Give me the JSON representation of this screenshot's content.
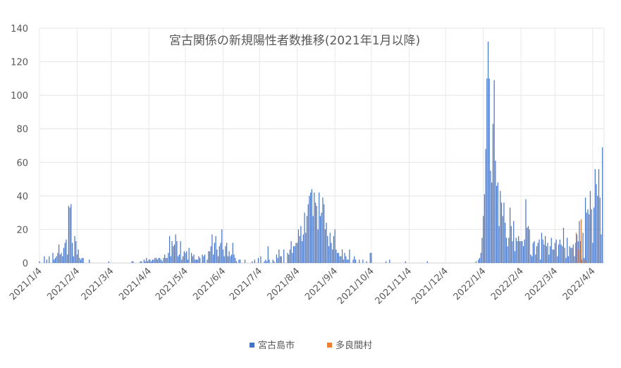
{
  "chart_data": {
    "type": "bar",
    "title": "宮古関係の新規陽性者数推移(2021年1月以降)",
    "xlabel": "",
    "ylabel": "",
    "ylim": [
      0,
      140
    ],
    "yticks": [
      0,
      20,
      40,
      60,
      80,
      100,
      120,
      140
    ],
    "xticks": [
      "2021/1/4",
      "2021/2/4",
      "2021/3/4",
      "2021/4/4",
      "2021/5/4",
      "2021/6/4",
      "2021/7/4",
      "2021/8/4",
      "2021/9/4",
      "2021/10/4",
      "2021/11/4",
      "2021/12/4",
      "2022/1/4",
      "2022/2/4",
      "2022/3/4",
      "2022/4/4"
    ],
    "grid": true,
    "legend_position": "bottom",
    "series": [
      {
        "name": "宮古島市",
        "color": "#4472C4",
        "daily_by_period": [
          {
            "from": "2021/1/4",
            "values": [
              1,
              0,
              0,
              0,
              4,
              0,
              2,
              0,
              4,
              0,
              0,
              6,
              2,
              3,
              4,
              6,
              11,
              5,
              6,
              4,
              9,
              12,
              14,
              5,
              34,
              33,
              35,
              12,
              4,
              16,
              13
            ]
          },
          {
            "from": "2021/2/4",
            "values": [
              5,
              8,
              3,
              2,
              3,
              3,
              0,
              0,
              0,
              0,
              2,
              0,
              0,
              0,
              0,
              0,
              0,
              0,
              0,
              0,
              0,
              0,
              0,
              0,
              0,
              0,
              1,
              0
            ]
          },
          {
            "from": "2021/3/4",
            "values": [
              0,
              0,
              0,
              0,
              0,
              0,
              0,
              0,
              0,
              0,
              0,
              0,
              0,
              0,
              0,
              0,
              0,
              1,
              1,
              0,
              0,
              0,
              0,
              0,
              1,
              1,
              0,
              2,
              1,
              3,
              1
            ]
          },
          {
            "from": "2021/4/4",
            "values": [
              2,
              2,
              1,
              2,
              2,
              3,
              3,
              2,
              3,
              3,
              2,
              1,
              3,
              5,
              3,
              3,
              6,
              16,
              4,
              13,
              10,
              11,
              17,
              13,
              4,
              5,
              13,
              2,
              4,
              7
            ]
          },
          {
            "from": "2021/5/4",
            "values": [
              6,
              7,
              2,
              9,
              0,
              6,
              4,
              5,
              2,
              2,
              2,
              4,
              3,
              0,
              5,
              4,
              5,
              0,
              2,
              7,
              7,
              10,
              17,
              5,
              12,
              16,
              8,
              4,
              10,
              12,
              20
            ]
          },
          {
            "from": "2021/6/4",
            "values": [
              8,
              4,
              10,
              12,
              4,
              7,
              4,
              5,
              12,
              5,
              3,
              1,
              0,
              2,
              2,
              0,
              0,
              0,
              2,
              0,
              0,
              0,
              0,
              0,
              1,
              0,
              2,
              0,
              0,
              3
            ]
          },
          {
            "from": "2021/7/4",
            "values": [
              0,
              4,
              0,
              0,
              1,
              2,
              1,
              10,
              2,
              0,
              0,
              2,
              1,
              0,
              5,
              3,
              8,
              4,
              4,
              0,
              8,
              0,
              0,
              6,
              5,
              8,
              13,
              6,
              10,
              10,
              12
            ]
          },
          {
            "from": "2021/8/4",
            "values": [
              12,
              20,
              16,
              22,
              13,
              17,
              30,
              18,
              28,
              35,
              40,
              42,
              44,
              28,
              42,
              36,
              34,
              20,
              42,
              28,
              30,
              39,
              35,
              20,
              24,
              16,
              10,
              18,
              12,
              8,
              16
            ]
          },
          {
            "from": "2021/9/4",
            "values": [
              20,
              8,
              6,
              6,
              4,
              4,
              8,
              2,
              6,
              4,
              2,
              2,
              8,
              0,
              0,
              2,
              4,
              2,
              0,
              0,
              2,
              0,
              0,
              2,
              0,
              0,
              1,
              0,
              0,
              6
            ]
          },
          {
            "from": "2021/10/4",
            "values": [
              6,
              0,
              0,
              0,
              0,
              0,
              0,
              0,
              0,
              0,
              0,
              0,
              1,
              0,
              0,
              2,
              0,
              0,
              0,
              0,
              0,
              0,
              0,
              0,
              0,
              0,
              0,
              0,
              1,
              0,
              0
            ]
          },
          {
            "from": "2021/11/4",
            "values": [
              0,
              0,
              0,
              0,
              0,
              0,
              0,
              0,
              0,
              0,
              0,
              0,
              0,
              0,
              0,
              1,
              0,
              0,
              0,
              0,
              0,
              0,
              0,
              0,
              0,
              0,
              0,
              0,
              0,
              0
            ]
          },
          {
            "from": "2021/12/4",
            "values": [
              0,
              0,
              0,
              0,
              0,
              0,
              0,
              0,
              0,
              0,
              0,
              0,
              0,
              0,
              0,
              0,
              0,
              0,
              0,
              0,
              0,
              0,
              0,
              0,
              0,
              1,
              0,
              2,
              3,
              6,
              15
            ]
          },
          {
            "from": "2022/1/4",
            "values": [
              28,
              41,
              68,
              110,
              132,
              110,
              55,
              48,
              83,
              109,
              61,
              46,
              48,
              22,
              43,
              36,
              28,
              36,
              24,
              15,
              10,
              15,
              33,
              22,
              13,
              25,
              7,
              15,
              13,
              16,
              13
            ]
          },
          {
            "from": "2022/2/4",
            "values": [
              13,
              13,
              10,
              14,
              38,
              21,
              22,
              20,
              5,
              4,
              12,
              13,
              5,
              10,
              12,
              14,
              2,
              18,
              14,
              11,
              16,
              10,
              12,
              5,
              10,
              15,
              8,
              8
            ]
          },
          {
            "from": "2022/3/4",
            "values": [
              12,
              14,
              4,
              11,
              14,
              11,
              10,
              21,
              9,
              3,
              15,
              4,
              10,
              9,
              9,
              11,
              4,
              12,
              17,
              13,
              25,
              13,
              2,
              18,
              3,
              39,
              30,
              32,
              29,
              43,
              32
            ]
          },
          {
            "from": "2022/4/4",
            "values": [
              12,
              33,
              56,
              47,
              40,
              56,
              39,
              17,
              69
            ]
          }
        ]
      },
      {
        "name": "多良間村",
        "color": "#ED7D31",
        "points": [
          [
            "2022/3/21",
            18
          ],
          [
            "2022/3/23",
            8
          ],
          [
            "2022/3/25",
            26
          ],
          [
            "2022/3/28",
            2
          ],
          [
            "2022/3/29",
            1
          ]
        ]
      }
    ]
  }
}
